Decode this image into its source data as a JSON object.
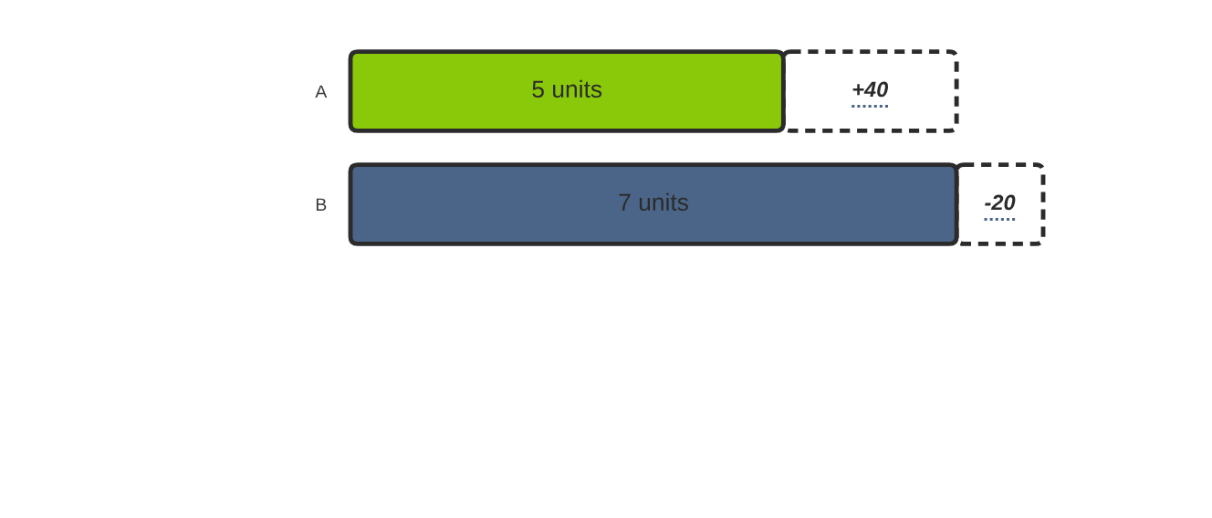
{
  "chart_data": {
    "type": "bar",
    "orientation": "horizontal",
    "stacked": true,
    "tick_labels": "y",
    "categories": [
      "A",
      "B"
    ],
    "series": [
      {
        "colors": [
          "#8ac80a",
          "#4a6587"
        ],
        "values": [
          5,
          7
        ],
        "value_labels": [
          "5 units",
          "7 units"
        ]
      },
      {
        "color": "#ffffff",
        "line_style": "dashed",
        "values": [
          2,
          1
        ]
      }
    ],
    "annotations": [
      "+40",
      "-20"
    ]
  }
}
